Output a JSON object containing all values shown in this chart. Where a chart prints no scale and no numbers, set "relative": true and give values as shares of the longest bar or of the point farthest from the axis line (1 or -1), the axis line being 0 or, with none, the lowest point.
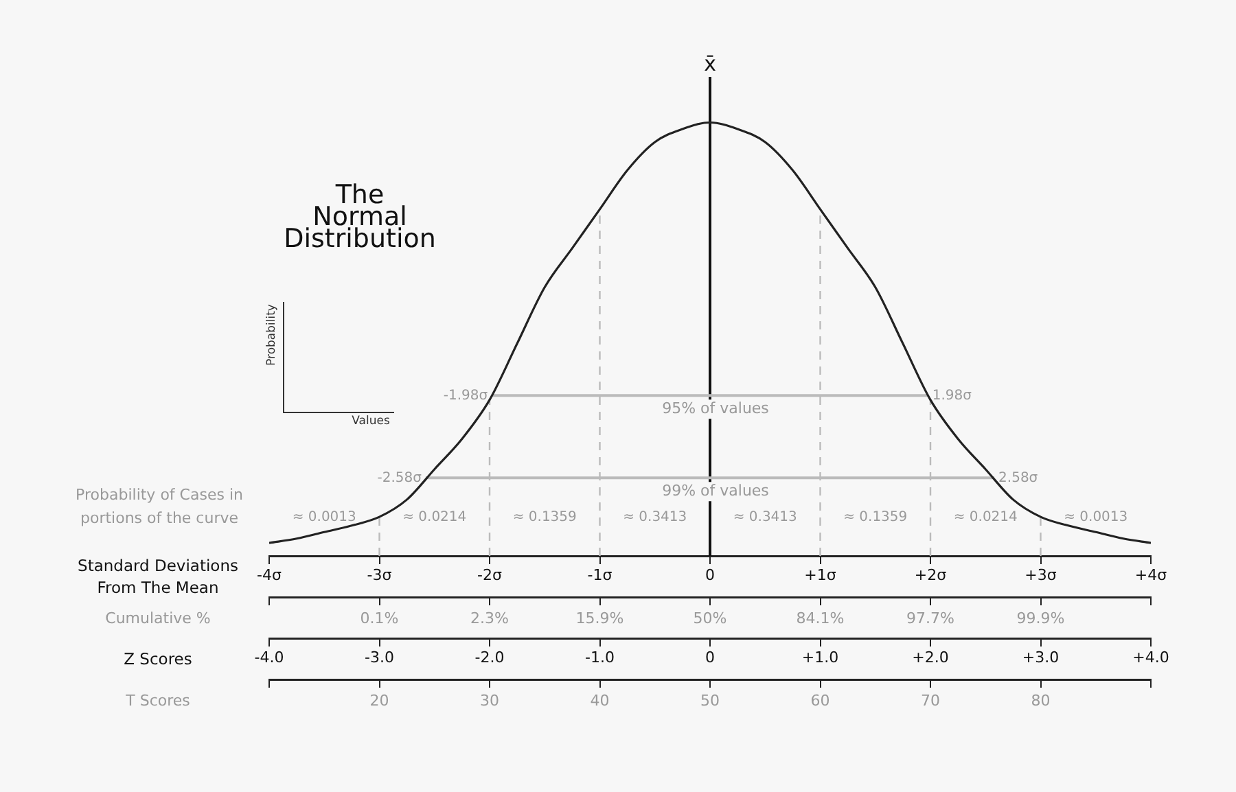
{
  "chart_data": {
    "type": "line",
    "relative": true,
    "title": "The Normal Distribution",
    "xlabel": "Standard Deviations From The Mean",
    "x2label": "Z Scores",
    "x": [
      -4,
      -3.75,
      -3.5,
      -3.25,
      -3,
      -2.75,
      -2.5,
      -2.25,
      -2,
      -1.75,
      -1.5,
      -1.25,
      -1,
      -0.75,
      -0.5,
      -0.25,
      0,
      0.25,
      0.5,
      0.75,
      1,
      1.25,
      1.5,
      1.75,
      2,
      2.25,
      2.5,
      2.75,
      3,
      3.25,
      3.5,
      3.75,
      4
    ],
    "series": [
      {
        "color": "#222222",
        "values": [
          0.03,
          0.04,
          0.055,
          0.07,
          0.09,
          0.13,
          0.2,
          0.27,
          0.36,
          0.49,
          0.62,
          0.71,
          0.8,
          0.89,
          0.955,
          0.985,
          1,
          0.985,
          0.955,
          0.89,
          0.8,
          0.71,
          0.62,
          0.49,
          0.36,
          0.27,
          0.2,
          0.13,
          0.09,
          0.07,
          0.055,
          0.04,
          0.03
        ]
      },
      {
        "type": "line",
        "name": "95% of values",
        "color": "#bbbbbb",
        "x": [
          -1.98,
          1.98
        ],
        "values": [
          0.37,
          0.37
        ]
      },
      {
        "type": "line",
        "name": "99% of values",
        "color": "#bbbbbb",
        "x": [
          -2.58,
          2.58
        ],
        "values": [
          0.18,
          0.18
        ]
      }
    ],
    "xlim": [
      -4,
      4
    ],
    "xticks": [
      {
        "value": -4,
        "label": "-4σ"
      },
      {
        "value": -3,
        "label": "-3σ"
      },
      {
        "value": -2,
        "label": "-2σ"
      },
      {
        "value": -1,
        "label": "-1σ"
      },
      0,
      {
        "value": 1,
        "label": "+1σ"
      },
      {
        "value": 2,
        "label": "+2σ"
      },
      {
        "value": 3,
        "label": "+3σ"
      },
      {
        "value": 4,
        "label": "+4σ"
      }
    ],
    "x2lim": [
      -4,
      4
    ],
    "x2ticks": [
      {
        "value": -4,
        "label": "-4.0"
      },
      {
        "value": -3,
        "label": "-3.0"
      },
      {
        "value": -2,
        "label": "-2.0"
      },
      {
        "value": -1,
        "label": "-1.0"
      },
      0,
      {
        "value": 1,
        "label": "+1.0"
      },
      {
        "value": 2,
        "label": "+2.0"
      },
      {
        "value": 3,
        "label": "+3.0"
      },
      {
        "value": 4,
        "label": "+4.0"
      }
    ],
    "ref_lines": [
      {
        "axis": "x",
        "value": -3,
        "color": "#bbbbbb",
        "line_style": "dashed"
      },
      {
        "axis": "x",
        "value": -2,
        "color": "#bbbbbb",
        "line_style": "dashed"
      },
      {
        "axis": "x",
        "value": -1,
        "color": "#bbbbbb",
        "line_style": "dashed"
      },
      {
        "axis": "x",
        "value": 0,
        "label": "x̄",
        "color": "#111111",
        "line_style": "solid"
      },
      {
        "axis": "x",
        "value": 1,
        "color": "#bbbbbb",
        "line_style": "dashed"
      },
      {
        "axis": "x",
        "value": 2,
        "color": "#bbbbbb",
        "line_style": "dashed"
      },
      {
        "axis": "x",
        "value": 3,
        "color": "#bbbbbb",
        "line_style": "dashed"
      }
    ],
    "annotations": [
      "Probability of Cases in portions of the curve",
      "Probability",
      "Values",
      "Cumulative %",
      "0.1%",
      "2.3%",
      "15.9%",
      "50%",
      "84.1%",
      "97.7%",
      "99.9%",
      "T Scores",
      "20",
      "30",
      "40",
      "50",
      "60",
      "70",
      "80",
      "≈ 0.0013",
      "≈ 0.0214",
      "≈ 0.1359",
      "≈ 0.3413",
      "≈ 0.3413",
      "≈ 0.1359",
      "≈ 0.0214",
      "≈ 0.0013",
      {
        "text": "-1.98σ",
        "x": -1.98,
        "y": 0.37
      },
      {
        "text": "1.98σ",
        "x": 1.98,
        "y": 0.37
      },
      {
        "text": "-2.58σ",
        "x": -2.58,
        "y": 0.18
      },
      {
        "text": "2.58σ",
        "x": 2.58,
        "y": 0.18
      }
    ],
    "legend": false,
    "grid": false,
    "marker": "none",
    "line_style": "solid"
  }
}
